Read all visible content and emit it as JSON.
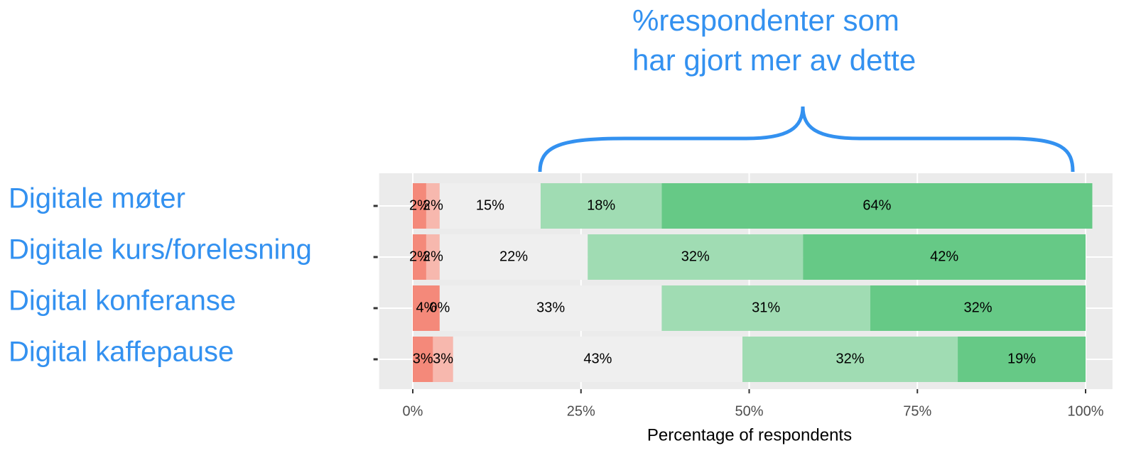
{
  "chart_data": {
    "type": "stacked-bar",
    "orientation": "horizontal",
    "annotation": [
      "%respondenter som",
      "har gjort mer av dette"
    ],
    "xlabel": "Percentage of respondents",
    "categories": [
      "Digitale møter",
      "Digitale kurs/forelesning",
      "Digital konferanse",
      "Digital kaffepause"
    ],
    "series": [
      {
        "color": "#f4897a",
        "values": [
          2,
          2,
          4,
          3
        ],
        "value_labels": [
          "2%",
          "2%",
          "4%",
          "3%"
        ]
      },
      {
        "color": "#f7b8ae",
        "values": [
          2,
          2,
          0,
          3
        ],
        "value_labels": [
          "2%",
          "2%",
          "0%",
          "3%"
        ]
      },
      {
        "color": "#efefef",
        "values": [
          15,
          22,
          33,
          43
        ],
        "value_labels": [
          "15%",
          "22%",
          "33%",
          "43%"
        ]
      },
      {
        "color": "#a0dcb3",
        "values": [
          18,
          32,
          31,
          32
        ],
        "value_labels": [
          "18%",
          "32%",
          "31%",
          "32%"
        ]
      },
      {
        "color": "#66c986",
        "values": [
          64,
          42,
          32,
          19
        ],
        "value_labels": [
          "64%",
          "42%",
          "32%",
          "19%"
        ]
      }
    ],
    "xlim": [
      -5,
      104
    ],
    "xticks": [
      {
        "value": 0,
        "label": "0%"
      },
      {
        "value": 25,
        "label": "25%"
      },
      {
        "value": 50,
        "label": "50%"
      },
      {
        "value": 75,
        "label": "75%"
      },
      {
        "value": 100,
        "label": "100%"
      }
    ],
    "grid": true
  }
}
